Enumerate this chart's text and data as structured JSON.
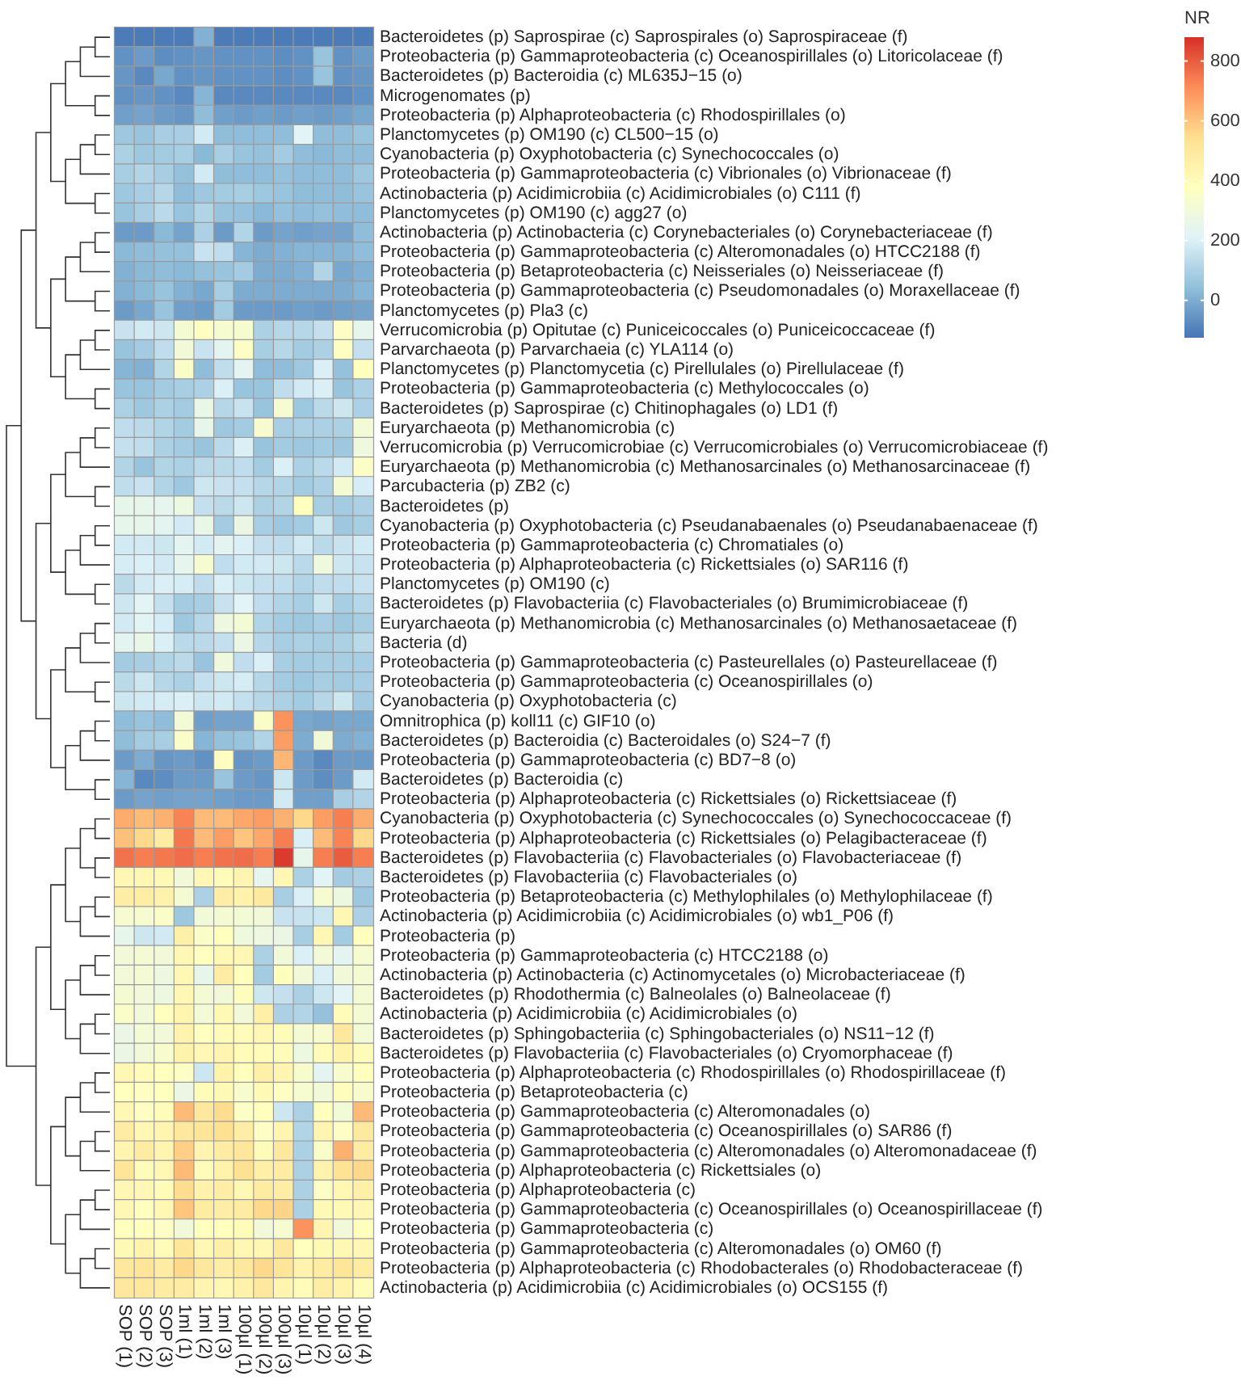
{
  "chart_data": {
    "type": "heatmap",
    "clabel": "NR",
    "clim": [
      -125,
      880
    ],
    "cticks": [
      0,
      200,
      400,
      600,
      800
    ],
    "categories": [
      "SOP (1)",
      "SOP (2)",
      "SOP (3)",
      "1ml (1)",
      "1ml (2)",
      "1ml (3)",
      "100µl (1)",
      "100µl (2)",
      "100µl (3)",
      "10µl (1)",
      "10µl (2)",
      "10µl (3)",
      "10µl (4)"
    ],
    "y_categories": [
      "Bacteroidetes (p) Saprospirae (c) Saprospirales (o) Saprospiraceae (f)",
      "Proteobacteria (p) Gammaproteobacteria (c) Oceanospirillales (o) Litoricolaceae (f)",
      "Bacteroidetes (p) Bacteroidia (c) ML635J−15 (o)",
      "Microgenomates (p)",
      "Proteobacteria (p) Alphaproteobacteria (c) Rhodospirillales (o)",
      "Planctomycetes (p) OM190 (c) CL500−15 (o)",
      "Cyanobacteria (p) Oxyphotobacteria (c) Synechococcales (o)",
      "Proteobacteria (p) Gammaproteobacteria (c) Vibrionales (o) Vibrionaceae (f)",
      "Actinobacteria (p) Acidimicrobiia (c) Acidimicrobiales (o) C111 (f)",
      "Planctomycetes (p) OM190 (c) agg27 (o)",
      "Actinobacteria (p) Actinobacteria (c) Corynebacteriales (o) Corynebacteriaceae (f)",
      "Proteobacteria (p) Gammaproteobacteria (c) Alteromonadales (o) HTCC2188 (f)",
      "Proteobacteria (p) Betaproteobacteria (c) Neisseriales (o) Neisseriaceae (f)",
      "Proteobacteria (p) Gammaproteobacteria (c) Pseudomonadales (o) Moraxellaceae (f)",
      "Planctomycetes (p) Pla3 (c)",
      "Verrucomicrobia (p) Opitutae (c) Puniceicoccales (o) Puniceicoccaceae (f)",
      "Parvarchaeota (p) Parvarchaeia (c) YLA114 (o)",
      "Planctomycetes (p) Planctomycetia (c) Pirellulales (o) Pirellulaceae (f)",
      "Proteobacteria (p) Gammaproteobacteria (c) Methylococcales (o)",
      "Bacteroidetes (p) Saprospirae (c) Chitinophagales (o) LD1 (f)",
      "Euryarchaeota (p) Methanomicrobia (c)",
      "Verrucomicrobia (p) Verrucomicrobiae (c) Verrucomicrobiales (o) Verrucomicrobiaceae (f)",
      "Euryarchaeota (p) Methanomicrobia (c) Methanosarcinales (o) Methanosarcinaceae (f)",
      "Parcubacteria (p) ZB2 (c)",
      "Bacteroidetes (p)",
      "Cyanobacteria (p) Oxyphotobacteria (c) Pseudanabaenales (o) Pseudanabaenaceae (f)",
      "Proteobacteria (p) Gammaproteobacteria (c) Chromatiales (o)",
      "Proteobacteria (p) Alphaproteobacteria (c) Rickettsiales (o) SAR116 (f)",
      "Planctomycetes (p) OM190 (c)",
      "Bacteroidetes (p) Flavobacteriia (c) Flavobacteriales (o) Brumimicrobiaceae (f)",
      "Euryarchaeota (p) Methanomicrobia (c) Methanosarcinales (o) Methanosaetaceae (f)",
      "Bacteria (d)",
      "Proteobacteria (p) Gammaproteobacteria (c) Pasteurellales (o) Pasteurellaceae (f)",
      "Proteobacteria (p) Gammaproteobacteria (c) Oceanospirillales (o)",
      "Cyanobacteria (p) Oxyphotobacteria (c)",
      "Omnitrophica (p) koll11 (c) GIF10 (o)",
      "Bacteroidetes (p) Bacteroidia (c) Bacteroidales (o) S24−7 (f)",
      "Proteobacteria (p) Gammaproteobacteria (c) BD7−8 (o)",
      "Bacteroidetes (p) Bacteroidia (c)",
      "Proteobacteria (p) Alphaproteobacteria (c) Rickettsiales (o) Rickettsiaceae (f)",
      "Cyanobacteria (p) Oxyphotobacteria (c) Synechococcales (o) Synechococcaceae (f)",
      "Proteobacteria (p) Alphaproteobacteria (c) Rickettsiales (o) Pelagibacteraceae (f)",
      "Bacteroidetes (p) Flavobacteriia (c) Flavobacteriales (o) Flavobacteriaceae (f)",
      "Bacteroidetes (p) Flavobacteriia (c) Flavobacteriales (o)",
      "Proteobacteria (p) Betaproteobacteria (c) Methylophilales (o) Methylophilaceae (f)",
      "Actinobacteria (p) Acidimicrobiia (c) Acidimicrobiales (o) wb1_P06 (f)",
      "Proteobacteria (p)",
      "Proteobacteria (p) Gammaproteobacteria (c) HTCC2188 (o)",
      "Actinobacteria (p) Actinobacteria (c) Actinomycetales (o) Microbacteriaceae (f)",
      "Bacteroidetes (p) Rhodothermia (c) Balneolales (o) Balneolaceae (f)",
      "Actinobacteria (p) Acidimicrobiia (c) Acidimicrobiales (o)",
      "Bacteroidetes (p) Sphingobacteriia (c) Sphingobacteriales (o) NS11−12 (f)",
      "Bacteroidetes (p) Flavobacteriia (c) Flavobacteriales (o) Cryomorphaceae (f)",
      "Proteobacteria (p) Alphaproteobacteria (c) Rhodospirillales (o) Rhodospirillaceae (f)",
      "Proteobacteria (p) Betaproteobacteria (c)",
      "Proteobacteria (p) Gammaproteobacteria (c) Alteromonadales (o)",
      "Proteobacteria (p) Gammaproteobacteria (c) Oceanospirillales (o) SAR86 (f)",
      "Proteobacteria (p) Gammaproteobacteria (c) Alteromonadales (o) Alteromonadaceae (f)",
      "Proteobacteria (p) Alphaproteobacteria (c) Rickettsiales (o)",
      "Proteobacteria (p) Alphaproteobacteria (c)",
      "Proteobacteria (p) Gammaproteobacteria (c) Oceanospirillales (o) Oceanospirillaceae (f)",
      "Proteobacteria (p) Gammaproteobacteria (c)",
      "Proteobacteria (p) Gammaproteobacteria (c) Alteromonadales (o) OM60 (f)",
      "Proteobacteria (p) Alphaproteobacteria (c) Rhodobacterales (o) Rhodobacteraceae (f)",
      "Actinobacteria (p) Acidimicrobiia (c) Acidimicrobiales (o) OCS155 (f)"
    ],
    "cells": [
      [
        -110,
        -110,
        -110,
        -110,
        10,
        -110,
        -110,
        -110,
        -110,
        -110,
        -110,
        -110,
        -110
      ],
      [
        -60,
        -40,
        -70,
        -60,
        -50,
        -60,
        -60,
        -60,
        -70,
        -60,
        60,
        -60,
        -40
      ],
      [
        -50,
        -80,
        -10,
        -60,
        -50,
        -60,
        -60,
        -60,
        -70,
        -60,
        60,
        -60,
        -50
      ],
      [
        -60,
        -50,
        -60,
        -80,
        20,
        -80,
        -80,
        -80,
        -80,
        -80,
        -80,
        -80,
        -60
      ],
      [
        -30,
        -20,
        -40,
        -50,
        40,
        -30,
        -40,
        -30,
        -40,
        -30,
        -40,
        -30,
        -10
      ],
      [
        70,
        60,
        90,
        90,
        180,
        40,
        40,
        40,
        40,
        220,
        40,
        40,
        60
      ],
      [
        100,
        70,
        80,
        90,
        30,
        90,
        60,
        50,
        80,
        40,
        30,
        40,
        40
      ],
      [
        90,
        110,
        90,
        50,
        180,
        40,
        40,
        40,
        50,
        40,
        40,
        40,
        70
      ],
      [
        70,
        90,
        120,
        40,
        70,
        80,
        90,
        70,
        60,
        40,
        40,
        40,
        60
      ],
      [
        60,
        90,
        130,
        60,
        110,
        60,
        50,
        30,
        50,
        40,
        50,
        40,
        40
      ],
      [
        -40,
        -40,
        30,
        -20,
        100,
        -40,
        110,
        -40,
        -20,
        -30,
        -20,
        -20,
        40
      ],
      [
        30,
        40,
        50,
        50,
        160,
        140,
        20,
        0,
        10,
        20,
        20,
        20,
        40
      ],
      [
        10,
        30,
        40,
        30,
        50,
        60,
        80,
        0,
        0,
        10,
        110,
        -10,
        10
      ],
      [
        10,
        30,
        60,
        10,
        -10,
        90,
        0,
        0,
        0,
        0,
        0,
        0,
        20
      ],
      [
        -40,
        -10,
        60,
        -30,
        -40,
        80,
        -40,
        -40,
        -40,
        -30,
        -40,
        -30,
        -20
      ],
      [
        160,
        180,
        170,
        320,
        370,
        330,
        330,
        100,
        120,
        120,
        150,
        360,
        240
      ],
      [
        60,
        80,
        140,
        300,
        160,
        230,
        360,
        90,
        120,
        80,
        100,
        370,
        150
      ],
      [
        20,
        10,
        110,
        350,
        40,
        140,
        230,
        40,
        40,
        70,
        200,
        50,
        380
      ],
      [
        60,
        60,
        80,
        90,
        100,
        200,
        60,
        60,
        140,
        180,
        200,
        60,
        100
      ],
      [
        100,
        70,
        100,
        80,
        260,
        120,
        160,
        60,
        330,
        70,
        130,
        170,
        100
      ],
      [
        140,
        130,
        110,
        80,
        250,
        70,
        80,
        330,
        90,
        100,
        100,
        100,
        310
      ],
      [
        150,
        140,
        100,
        80,
        60,
        130,
        200,
        60,
        80,
        70,
        80,
        70,
        290
      ],
      [
        110,
        60,
        110,
        100,
        130,
        130,
        140,
        80,
        200,
        100,
        130,
        180,
        360
      ],
      [
        140,
        160,
        110,
        70,
        170,
        160,
        150,
        120,
        110,
        80,
        100,
        320,
        190
      ],
      [
        250,
        250,
        240,
        280,
        150,
        130,
        170,
        100,
        110,
        380,
        90,
        80,
        100
      ],
      [
        250,
        250,
        230,
        180,
        260,
        80,
        270,
        90,
        70,
        80,
        170,
        70,
        90
      ],
      [
        180,
        180,
        170,
        230,
        180,
        230,
        200,
        150,
        140,
        180,
        130,
        160,
        180
      ],
      [
        190,
        200,
        180,
        240,
        330,
        140,
        180,
        180,
        170,
        130,
        290,
        170,
        160
      ],
      [
        130,
        180,
        200,
        190,
        140,
        200,
        170,
        150,
        140,
        110,
        140,
        140,
        160
      ],
      [
        170,
        220,
        150,
        80,
        90,
        160,
        220,
        140,
        110,
        90,
        170,
        90,
        120
      ],
      [
        180,
        220,
        190,
        70,
        120,
        280,
        310,
        110,
        80,
        70,
        90,
        70,
        90
      ],
      [
        230,
        260,
        200,
        130,
        130,
        150,
        270,
        120,
        90,
        100,
        90,
        100,
        130
      ],
      [
        80,
        90,
        110,
        130,
        60,
        290,
        140,
        200,
        90,
        80,
        90,
        90,
        90
      ],
      [
        130,
        170,
        120,
        100,
        150,
        170,
        190,
        120,
        80,
        70,
        90,
        80,
        90
      ],
      [
        170,
        180,
        190,
        200,
        170,
        180,
        150,
        120,
        100,
        80,
        120,
        170,
        80
      ],
      [
        40,
        60,
        40,
        310,
        -30,
        -20,
        -20,
        350,
        700,
        -10,
        -20,
        -10,
        -10
      ],
      [
        40,
        80,
        90,
        350,
        20,
        50,
        60,
        110,
        680,
        0,
        300,
        0,
        10
      ],
      [
        -40,
        0,
        -50,
        -40,
        -60,
        370,
        -50,
        -40,
        630,
        -40,
        -80,
        -40,
        -40
      ],
      [
        20,
        -80,
        -70,
        -40,
        -40,
        60,
        -40,
        -50,
        170,
        -40,
        -70,
        -40,
        180
      ],
      [
        -40,
        -20,
        -30,
        -20,
        -20,
        -30,
        -40,
        -40,
        180,
        -30,
        -30,
        90,
        110
      ],
      [
        650,
        620,
        640,
        730,
        620,
        620,
        660,
        680,
        640,
        560,
        680,
        740,
        650
      ],
      [
        610,
        560,
        480,
        750,
        620,
        680,
        600,
        660,
        740,
        200,
        620,
        730,
        560
      ],
      [
        760,
        740,
        750,
        770,
        740,
        760,
        770,
        740,
        860,
        250,
        740,
        800,
        740
      ],
      [
        420,
        420,
        410,
        300,
        420,
        400,
        430,
        240,
        420,
        100,
        220,
        80,
        100
      ],
      [
        470,
        470,
        450,
        320,
        100,
        470,
        450,
        490,
        90,
        200,
        330,
        280,
        70
      ],
      [
        330,
        330,
        350,
        70,
        300,
        320,
        310,
        300,
        160,
        160,
        170,
        420,
        100
      ],
      [
        250,
        170,
        180,
        460,
        350,
        380,
        290,
        280,
        270,
        90,
        420,
        80,
        380
      ],
      [
        300,
        320,
        300,
        420,
        380,
        410,
        420,
        100,
        300,
        200,
        310,
        230,
        330
      ],
      [
        300,
        320,
        280,
        420,
        250,
        480,
        380,
        80,
        380,
        300,
        200,
        300,
        320
      ],
      [
        320,
        300,
        280,
        420,
        320,
        300,
        390,
        170,
        150,
        100,
        170,
        220,
        320
      ],
      [
        350,
        300,
        380,
        430,
        310,
        410,
        300,
        460,
        100,
        110,
        50,
        400,
        320
      ],
      [
        270,
        310,
        300,
        440,
        380,
        400,
        400,
        420,
        400,
        320,
        330,
        500,
        310
      ],
      [
        270,
        300,
        340,
        450,
        420,
        430,
        400,
        400,
        400,
        280,
        400,
        450,
        400
      ],
      [
        420,
        400,
        380,
        360,
        170,
        450,
        380,
        460,
        430,
        340,
        230,
        340,
        380
      ],
      [
        380,
        370,
        380,
        270,
        400,
        410,
        340,
        410,
        370,
        330,
        300,
        390,
        340
      ],
      [
        420,
        370,
        400,
        620,
        500,
        550,
        360,
        380,
        170,
        100,
        380,
        310,
        620
      ],
      [
        480,
        420,
        430,
        500,
        520,
        540,
        470,
        360,
        430,
        110,
        430,
        360,
        490
      ],
      [
        430,
        480,
        430,
        580,
        430,
        480,
        510,
        400,
        500,
        100,
        350,
        640,
        480
      ],
      [
        520,
        400,
        420,
        620,
        400,
        450,
        540,
        460,
        480,
        100,
        440,
        530,
        560
      ],
      [
        420,
        420,
        400,
        550,
        450,
        470,
        420,
        480,
        470,
        100,
        360,
        420,
        460
      ],
      [
        420,
        380,
        420,
        600,
        480,
        470,
        480,
        560,
        570,
        100,
        410,
        410,
        420
      ],
      [
        380,
        380,
        360,
        300,
        380,
        380,
        400,
        300,
        330,
        700,
        430,
        300,
        380
      ],
      [
        410,
        440,
        400,
        510,
        420,
        460,
        420,
        420,
        500,
        380,
        410,
        420,
        420
      ],
      [
        500,
        520,
        480,
        560,
        500,
        470,
        500,
        560,
        520,
        440,
        480,
        520,
        480
      ],
      [
        500,
        500,
        480,
        480,
        430,
        420,
        450,
        500,
        430,
        400,
        470,
        450,
        400
      ]
    ]
  }
}
